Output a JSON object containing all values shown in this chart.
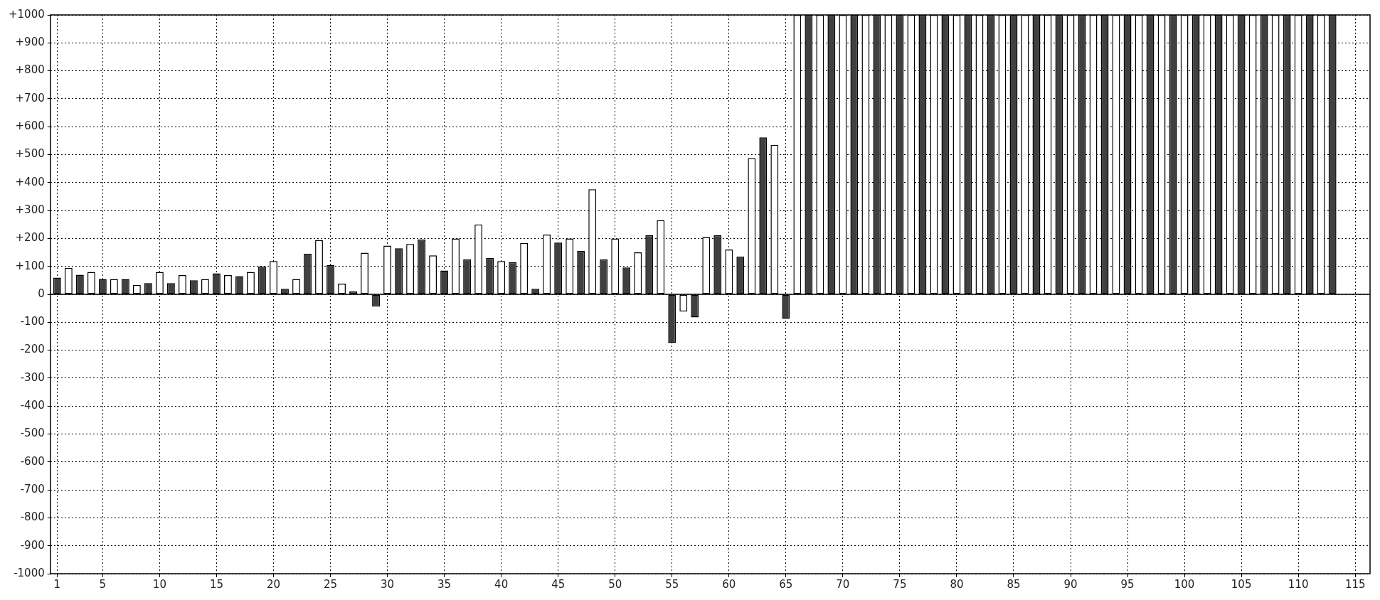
{
  "chart_data": {
    "type": "bar",
    "series": [
      {
        "color": "#404040",
        "x": [
          1,
          3,
          5,
          7,
          9,
          11,
          13,
          15,
          17,
          19,
          21,
          23,
          25,
          27,
          29,
          31,
          33,
          35,
          37,
          39,
          41,
          43,
          45,
          47,
          49,
          51,
          53,
          55,
          57,
          59,
          61,
          63,
          65,
          67,
          69,
          71,
          73,
          75,
          77,
          79,
          81,
          83,
          85,
          87,
          89,
          91,
          93,
          95,
          97,
          99,
          101,
          103,
          105,
          107,
          109,
          111,
          113
        ],
        "values": [
          60,
          70,
          55,
          55,
          40,
          40,
          50,
          75,
          65,
          100,
          20,
          145,
          105,
          10,
          -44,
          165,
          196,
          85,
          125,
          130,
          115,
          20,
          185,
          156,
          125,
          96,
          211,
          -174,
          -83,
          211,
          135,
          562,
          -88,
          1000,
          1000,
          1000,
          1000,
          1000,
          1000,
          1000,
          1000,
          1000,
          1000,
          1000,
          1000,
          1000,
          1000,
          1000,
          1000,
          1000,
          1000,
          1000,
          1000,
          1000,
          1000,
          1000,
          1000
        ]
      },
      {
        "color": "#ffffff",
        "x": [
          2,
          4,
          6,
          8,
          10,
          12,
          14,
          16,
          18,
          20,
          22,
          24,
          26,
          28,
          30,
          32,
          34,
          36,
          38,
          40,
          42,
          44,
          46,
          48,
          50,
          52,
          54,
          56,
          58,
          60,
          62,
          64,
          66,
          68,
          70,
          72,
          74,
          76,
          78,
          80,
          82,
          84,
          86,
          88,
          90,
          92,
          94,
          96,
          98,
          100,
          102,
          104,
          106,
          108,
          110,
          112
        ],
        "values": [
          95,
          80,
          55,
          34,
          80,
          69,
          55,
          69,
          80,
          119,
          55,
          194,
          38,
          149,
          174,
          180,
          139,
          200,
          250,
          119,
          184,
          214,
          200,
          376,
          200,
          150,
          265,
          -62,
          205,
          160,
          488,
          535,
          1000,
          1000,
          1000,
          1000,
          1000,
          1000,
          1000,
          1000,
          1000,
          1000,
          1000,
          1000,
          1000,
          1000,
          1000,
          1000,
          1000,
          1000,
          1000,
          1000,
          1000,
          1000,
          1000,
          1000
        ]
      }
    ],
    "xlim": [
      0.4,
      116.3
    ],
    "xticks": [
      1,
      5,
      10,
      15,
      20,
      25,
      30,
      35,
      40,
      45,
      50,
      55,
      60,
      65,
      70,
      75,
      80,
      85,
      90,
      95,
      100,
      105,
      110,
      115
    ],
    "ylim": [
      -1000,
      1000
    ],
    "yticks": [
      -1000,
      -900,
      -800,
      -700,
      -600,
      -500,
      -400,
      -300,
      -200,
      -100,
      0,
      {
        "value": 100,
        "label": "+100"
      },
      {
        "value": 200,
        "label": "+200"
      },
      {
        "value": 300,
        "label": "+300"
      },
      {
        "value": 400,
        "label": "+400"
      },
      {
        "value": 500,
        "label": "+500"
      },
      {
        "value": 600,
        "label": "+600"
      },
      {
        "value": 700,
        "label": "+700"
      },
      {
        "value": 800,
        "label": "+800"
      },
      {
        "value": 900,
        "label": "+900"
      },
      {
        "value": 1000,
        "label": "+1000"
      }
    ],
    "grid": true,
    "legend": false
  }
}
